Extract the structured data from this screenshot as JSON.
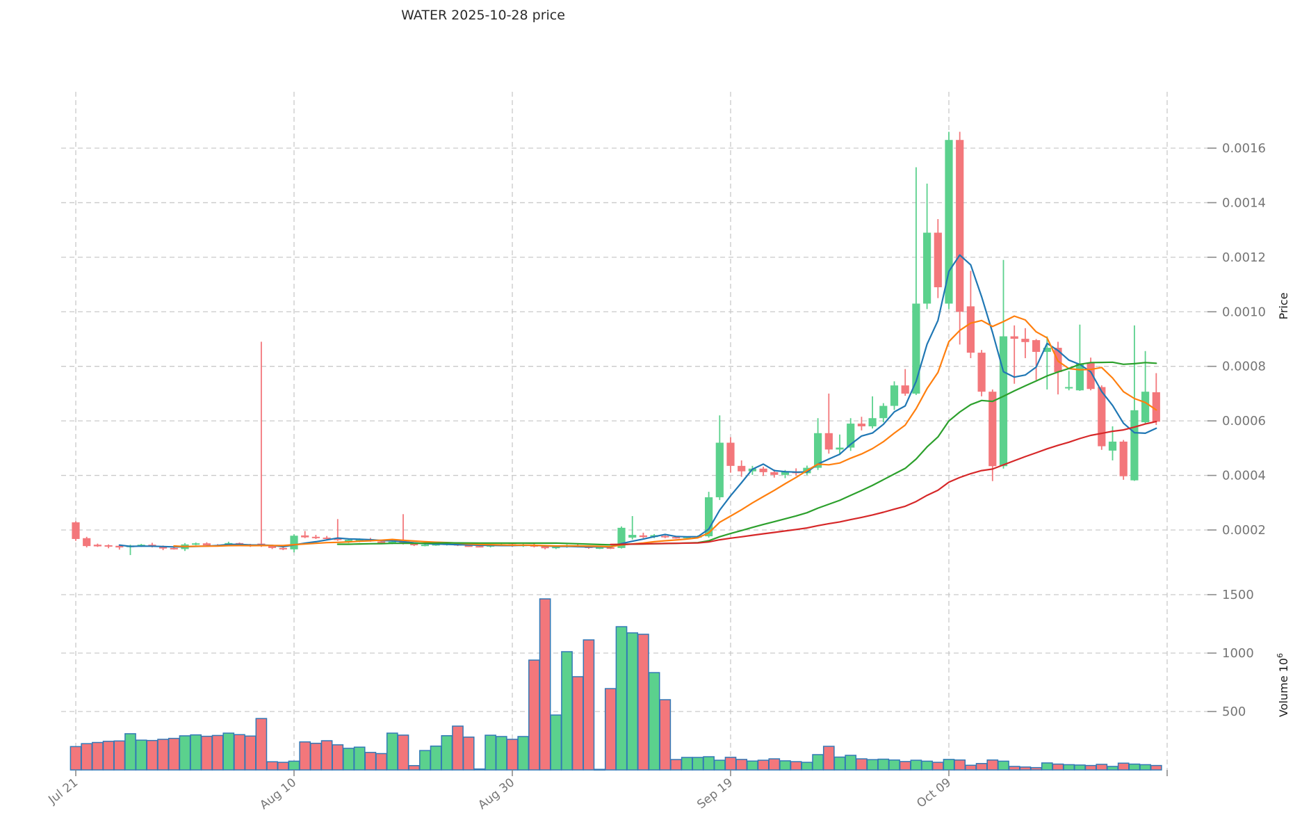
{
  "title": "WATER  2025-10-28  price",
  "axes": {
    "price_axis_label": "Price",
    "volume_axis_label_prefix": "Volume  10",
    "volume_axis_label_exponent": "6",
    "price_ticks": [
      0.0002,
      0.0004,
      0.0006,
      0.0008,
      0.001,
      0.0012,
      0.0014,
      0.0016
    ],
    "volume_ticks": [
      500,
      1000,
      1500
    ],
    "x_ticks": [
      {
        "label": "Jul 21",
        "index": 0
      },
      {
        "label": "Aug 10",
        "index": 20
      },
      {
        "label": "Aug 30",
        "index": 40
      },
      {
        "label": "Sep 19",
        "index": 60
      },
      {
        "label": "Oct 09",
        "index": 80
      },
      {
        "label": "",
        "index": 100
      }
    ]
  },
  "style": {
    "up_color": "#5BD18D",
    "down_color": "#F3777B",
    "volume_edge_color": "#3279B7",
    "grid_color": "#C9C9C9",
    "ma_colors": [
      "#1f77b4",
      "#ff7f0e",
      "#2ca02c",
      "#d62728"
    ],
    "tick_text_color": "#757575",
    "title_color": "#2b2b2b"
  },
  "chart_data": {
    "type": "candlestick-with-volume",
    "title": "WATER  2025-10-28  price",
    "ylabel": "Price",
    "ylabel_volume": "Volume 10^6",
    "price_axis_range": [
      9.75e-05,
      0.0018
    ],
    "volume_axis_range": [
      0,
      1827
    ],
    "grid": "dashed",
    "legend_position": "none",
    "moving_averages": {
      "windows": [
        5,
        10,
        25,
        50
      ],
      "colors": [
        "#1f77b4",
        "#ff7f0e",
        "#2ca02c",
        "#d62728"
      ]
    },
    "columns": [
      "date",
      "open",
      "high",
      "low",
      "close",
      "volume_millions"
    ],
    "candles": [
      [
        "2025-07-21",
        0.000228,
        0.000232,
        0.00016,
        0.000167,
        200
      ],
      [
        "2025-07-22",
        0.00017,
        0.000175,
        0.000136,
        0.000141,
        225
      ],
      [
        "2025-07-23",
        0.000146,
        0.00015,
        0.000138,
        0.00014,
        235
      ],
      [
        "2025-07-24",
        0.000144,
        0.000147,
        0.000133,
        0.000139,
        245
      ],
      [
        "2025-07-25",
        0.000142,
        0.000145,
        0.000128,
        0.000136,
        248
      ],
      [
        "2025-07-26",
        0.000137,
        0.000146,
        0.000108,
        0.000143,
        310
      ],
      [
        "2025-07-27",
        0.000141,
        0.000149,
        0.000138,
        0.000146,
        255
      ],
      [
        "2025-07-28",
        0.000146,
        0.000153,
        0.000136,
        0.000139,
        252
      ],
      [
        "2025-07-29",
        0.00014,
        0.000143,
        0.000126,
        0.000132,
        262
      ],
      [
        "2025-07-30",
        0.000134,
        0.000138,
        0.000128,
        0.00013,
        270
      ],
      [
        "2025-07-31",
        0.00013,
        0.000152,
        0.000123,
        0.000147,
        292
      ],
      [
        "2025-08-01",
        0.000147,
        0.000154,
        0.000144,
        0.000151,
        300
      ],
      [
        "2025-08-02",
        0.000151,
        0.000155,
        0.000141,
        0.000144,
        288
      ],
      [
        "2025-08-03",
        0.000145,
        0.000148,
        0.000139,
        0.000142,
        295
      ],
      [
        "2025-08-04",
        0.000142,
        0.000157,
        0.00014,
        0.000152,
        315
      ],
      [
        "2025-08-05",
        0.000152,
        0.000154,
        0.000144,
        0.000147,
        302
      ],
      [
        "2025-08-06",
        0.000147,
        0.000149,
        0.000138,
        0.000141,
        290
      ],
      [
        "2025-08-07",
        0.00015,
        0.00089,
        0.000138,
        0.000143,
        440
      ],
      [
        "2025-08-08",
        0.000142,
        0.000146,
        0.00013,
        0.000134,
        70
      ],
      [
        "2025-08-09",
        0.000134,
        0.000137,
        0.000126,
        0.000129,
        65
      ],
      [
        "2025-08-10",
        0.000129,
        0.000184,
        0.000118,
        0.000179,
        75
      ],
      [
        "2025-08-11",
        0.00018,
        0.000196,
        0.00017,
        0.000173,
        240
      ],
      [
        "2025-08-12",
        0.000175,
        0.000182,
        0.000167,
        0.00017,
        228
      ],
      [
        "2025-08-13",
        0.000172,
        0.000178,
        0.000162,
        0.000167,
        250
      ],
      [
        "2025-08-14",
        0.00017,
        0.00024,
        0.00016,
        0.000163,
        215
      ],
      [
        "2025-08-15",
        0.000157,
        0.000167,
        0.000152,
        0.000164,
        185
      ],
      [
        "2025-08-16",
        0.00016,
        0.000169,
        0.000155,
        0.000166,
        195
      ],
      [
        "2025-08-17",
        0.000166,
        0.000171,
        0.000157,
        0.000161,
        150
      ],
      [
        "2025-08-18",
        0.000158,
        0.000163,
        0.00015,
        0.000153,
        140
      ],
      [
        "2025-08-19",
        0.000153,
        0.00016,
        0.000148,
        0.000157,
        315
      ],
      [
        "2025-08-20",
        0.000162,
        0.000258,
        0.000147,
        0.000149,
        298
      ],
      [
        "2025-08-21",
        0.000149,
        0.000152,
        0.000141,
        0.000144,
        37
      ],
      [
        "2025-08-22",
        0.000144,
        0.000149,
        0.00014,
        0.000146,
        166
      ],
      [
        "2025-08-23",
        0.000146,
        0.000151,
        0.000142,
        0.000148,
        204
      ],
      [
        "2025-08-24",
        0.000148,
        0.000153,
        0.000143,
        0.00015,
        293
      ],
      [
        "2025-08-25",
        0.00015,
        0.000154,
        0.000141,
        0.000143,
        375
      ],
      [
        "2025-08-26",
        0.000143,
        0.000147,
        0.000138,
        0.00014,
        281
      ],
      [
        "2025-08-27",
        0.000141,
        0.000144,
        0.000137,
        0.000139,
        8
      ],
      [
        "2025-08-28",
        0.000139,
        0.000147,
        0.000136,
        0.000145,
        297
      ],
      [
        "2025-08-29",
        0.000145,
        0.00015,
        0.000141,
        0.000148,
        286
      ],
      [
        "2025-08-30",
        0.000148,
        0.000151,
        0.000139,
        0.000142,
        262
      ],
      [
        "2025-08-31",
        0.000142,
        0.000149,
        0.000138,
        0.000146,
        286
      ],
      [
        "2025-09-01",
        0.000146,
        0.00015,
        0.000136,
        0.000139,
        940
      ],
      [
        "2025-09-02",
        0.00014,
        0.000145,
        0.000129,
        0.000133,
        1464
      ],
      [
        "2025-09-03",
        0.000133,
        0.000142,
        0.00013,
        0.000139,
        470
      ],
      [
        "2025-09-04",
        0.000139,
        0.000147,
        0.000135,
        0.000144,
        1012
      ],
      [
        "2025-09-05",
        0.000144,
        0.000148,
        0.000136,
        0.000139,
        798
      ],
      [
        "2025-09-06",
        0.000139,
        0.000143,
        0.000131,
        0.000134,
        1113
      ],
      [
        "2025-09-07",
        0.000134,
        0.000139,
        0.00013,
        0.000136,
        5
      ],
      [
        "2025-09-08",
        0.000136,
        0.000141,
        0.00013,
        0.000133,
        696
      ],
      [
        "2025-09-09",
        0.000134,
        0.000213,
        0.000132,
        0.000208,
        1226
      ],
      [
        "2025-09-10",
        0.000172,
        0.000251,
        0.000165,
        0.000182,
        1173
      ],
      [
        "2025-09-11",
        0.00018,
        0.00019,
        0.00017,
        0.000174,
        1161
      ],
      [
        "2025-09-12",
        0.000174,
        0.000185,
        0.00017,
        0.000181,
        833
      ],
      [
        "2025-09-13",
        0.000178,
        0.000183,
        0.00017,
        0.000174,
        601
      ],
      [
        "2025-09-14",
        0.000174,
        0.000178,
        0.000168,
        0.000171,
        89
      ],
      [
        "2025-09-15",
        0.000171,
        0.000177,
        0.000167,
        0.000175,
        107
      ],
      [
        "2025-09-16",
        0.000175,
        0.00018,
        0.00017,
        0.000177,
        107
      ],
      [
        "2025-09-17",
        0.000177,
        0.00034,
        0.000172,
        0.00032,
        113
      ],
      [
        "2025-09-18",
        0.00032,
        0.00062,
        0.00031,
        0.00052,
        83
      ],
      [
        "2025-09-19",
        0.00052,
        0.00054,
        0.00041,
        0.000435,
        108
      ],
      [
        "2025-09-20",
        0.000435,
        0.000455,
        0.000395,
        0.000415,
        90
      ],
      [
        "2025-09-21",
        0.000415,
        0.000435,
        0.000402,
        0.000425,
        76
      ],
      [
        "2025-09-22",
        0.000425,
        0.000432,
        0.000398,
        0.000412,
        83
      ],
      [
        "2025-09-23",
        0.000412,
        0.000422,
        0.000392,
        0.000402,
        95
      ],
      [
        "2025-09-24",
        0.000402,
        0.00042,
        0.00039,
        0.000414,
        78
      ],
      [
        "2025-09-25",
        0.000414,
        0.000426,
        0.0004,
        0.000408,
        71
      ],
      [
        "2025-09-26",
        0.000408,
        0.000436,
        0.000402,
        0.000428,
        65
      ],
      [
        "2025-09-27",
        0.000428,
        0.00061,
        0.00042,
        0.000555,
        131
      ],
      [
        "2025-09-28",
        0.000555,
        0.0007,
        0.00048,
        0.000495,
        202
      ],
      [
        "2025-09-29",
        0.000495,
        0.00055,
        0.000475,
        0.000502,
        110
      ],
      [
        "2025-09-30",
        0.000502,
        0.00061,
        0.00049,
        0.00059,
        125
      ],
      [
        "2025-10-01",
        0.00059,
        0.000615,
        0.000565,
        0.00058,
        95
      ],
      [
        "2025-10-02",
        0.00058,
        0.00069,
        0.000572,
        0.00061,
        88
      ],
      [
        "2025-10-03",
        0.00061,
        0.000665,
        0.000595,
        0.000655,
        92
      ],
      [
        "2025-10-04",
        0.000655,
        0.000745,
        0.00064,
        0.00073,
        85
      ],
      [
        "2025-10-05",
        0.00073,
        0.00079,
        0.000692,
        0.0007,
        72
      ],
      [
        "2025-10-06",
        0.0007,
        0.00153,
        0.000695,
        0.00103,
        83
      ],
      [
        "2025-10-07",
        0.00103,
        0.00147,
        0.00101,
        0.00129,
        75
      ],
      [
        "2025-10-08",
        0.00129,
        0.00134,
        0.00105,
        0.00109,
        65
      ],
      [
        "2025-10-09",
        0.00103,
        0.00166,
        0.00101,
        0.00163,
        90
      ],
      [
        "2025-10-10",
        0.00163,
        0.00166,
        0.00088,
        0.001,
        85
      ],
      [
        "2025-10-11",
        0.00102,
        0.00115,
        0.00083,
        0.00085,
        40
      ],
      [
        "2025-10-12",
        0.00085,
        0.00086,
        0.00069,
        0.000707,
        55
      ],
      [
        "2025-10-13",
        0.000707,
        0.000715,
        0.000379,
        0.000434,
        85
      ],
      [
        "2025-10-14",
        0.000434,
        0.00119,
        0.000425,
        0.00091,
        75
      ],
      [
        "2025-10-15",
        0.00091,
        0.00095,
        0.000736,
        0.000901,
        30
      ],
      [
        "2025-10-16",
        0.000901,
        0.00094,
        0.00083,
        0.000889,
        25
      ],
      [
        "2025-10-17",
        0.000896,
        0.0009,
        0.00075,
        0.000853,
        20
      ],
      [
        "2025-10-18",
        0.000853,
        0.00091,
        0.000715,
        0.000868,
        60
      ],
      [
        "2025-10-19",
        0.000868,
        0.00089,
        0.000697,
        0.000779,
        50
      ],
      [
        "2025-10-20",
        0.00072,
        0.000783,
        0.000712,
        0.000724,
        45
      ],
      [
        "2025-10-21",
        0.000712,
        0.000953,
        0.00071,
        0.000811,
        42
      ],
      [
        "2025-10-22",
        0.000813,
        0.000832,
        0.000712,
        0.000717,
        38
      ],
      [
        "2025-10-23",
        0.000724,
        0.00073,
        0.000494,
        0.000507,
        48
      ],
      [
        "2025-10-24",
        0.000491,
        0.00058,
        0.000455,
        0.000524,
        30
      ],
      [
        "2025-10-25",
        0.000524,
        0.00053,
        0.000384,
        0.000397,
        58
      ],
      [
        "2025-10-26",
        0.000382,
        0.00095,
        0.00038,
        0.000639,
        50
      ],
      [
        "2025-10-27",
        0.000595,
        0.000856,
        0.00059,
        0.000707,
        45
      ],
      [
        "2025-10-28",
        0.000705,
        0.000775,
        0.000585,
        0.000597,
        38
      ]
    ]
  }
}
